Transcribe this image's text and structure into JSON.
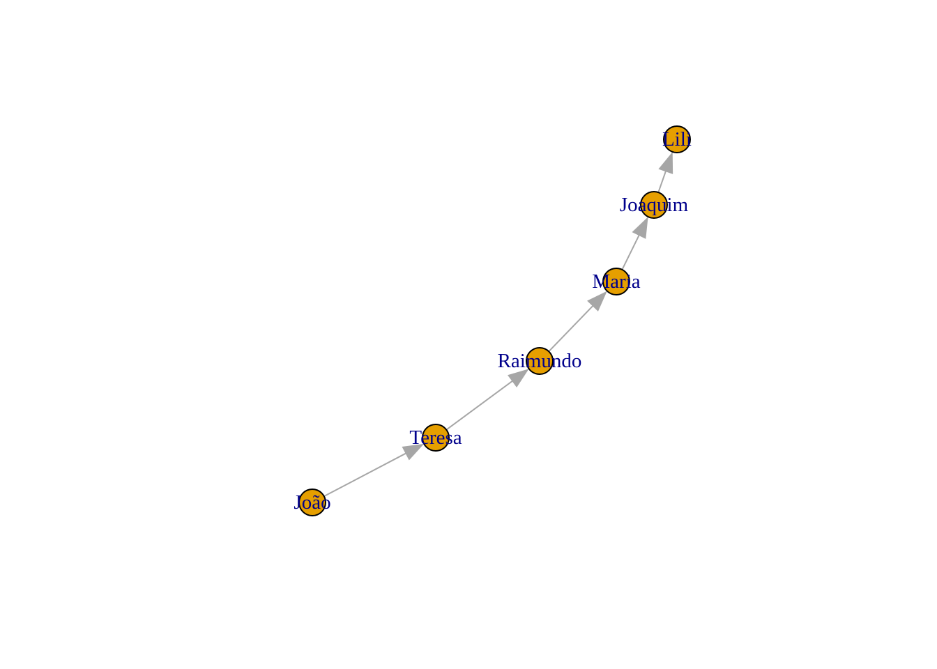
{
  "graph": {
    "node_fill": "#E69F00",
    "node_border": "#000000",
    "label_color": "#00008B",
    "edge_color": "#A6A6A6",
    "directed": true,
    "nodes": [
      {
        "id": "joao",
        "label": "João"
      },
      {
        "id": "teresa",
        "label": "Teresa"
      },
      {
        "id": "raimundo",
        "label": "Raimundo"
      },
      {
        "id": "maria",
        "label": "Maria"
      },
      {
        "id": "joaquim",
        "label": "Joaquim"
      },
      {
        "id": "lili",
        "label": "Lili"
      }
    ],
    "edges": [
      {
        "from": "joao",
        "to": "teresa"
      },
      {
        "from": "teresa",
        "to": "raimundo"
      },
      {
        "from": "raimundo",
        "to": "maria"
      },
      {
        "from": "maria",
        "to": "joaquim"
      },
      {
        "from": "joaquim",
        "to": "lili"
      }
    ]
  }
}
